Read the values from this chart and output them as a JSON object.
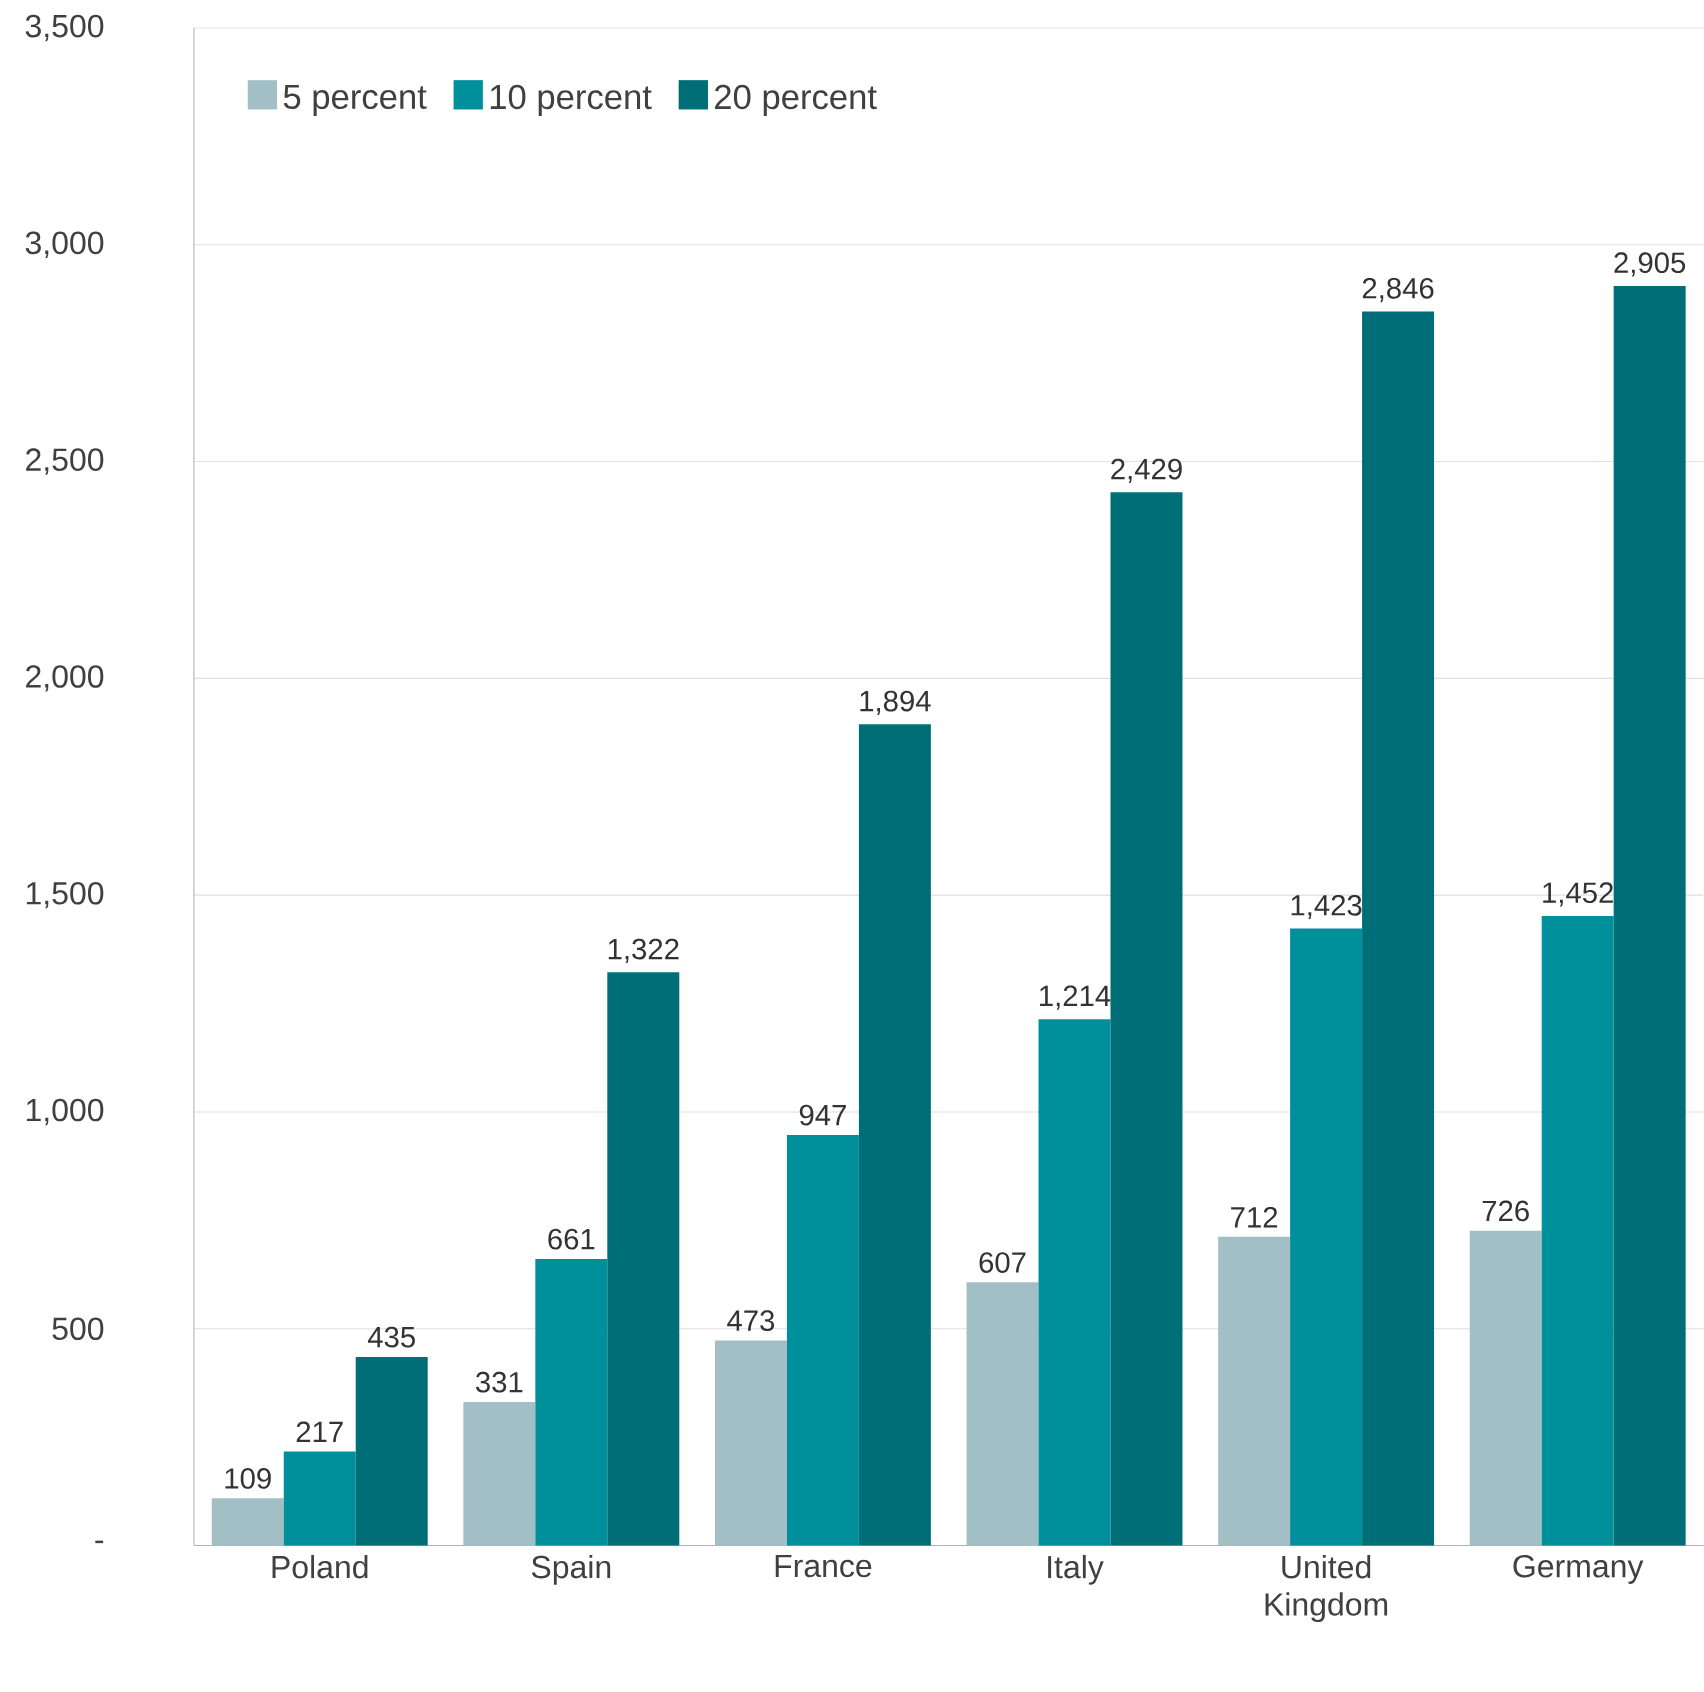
{
  "chart_data": {
    "type": "bar",
    "categories": [
      "Poland",
      "Spain",
      "France",
      "Italy",
      "United Kingdom",
      "Germany"
    ],
    "series": [
      {
        "name": "5 percent",
        "color": "#a3bfc6",
        "values": [
          109,
          331,
          473,
          607,
          712,
          726
        ],
        "value_labels": [
          "109",
          "331",
          "473",
          "607",
          "712",
          "726"
        ]
      },
      {
        "name": "10 percent",
        "color": "#00909b",
        "values": [
          217,
          661,
          947,
          1214,
          1423,
          1452
        ],
        "value_labels": [
          "217",
          "661",
          "947",
          "1,214",
          "1,423",
          "1,452"
        ]
      },
      {
        "name": "20 percent",
        "color": "#006e76",
        "values": [
          435,
          1322,
          1894,
          2429,
          2846,
          2905
        ],
        "value_labels": [
          "435",
          "1,322",
          "1,894",
          "2,429",
          "2,846",
          "2,905"
        ]
      }
    ],
    "ylim": [
      0,
      3500
    ],
    "yticks": [
      {
        "value": 0,
        "label": "-"
      },
      500,
      {
        "value": 1000,
        "label": "1,000"
      },
      {
        "value": 1500,
        "label": "1,500"
      },
      {
        "value": 2000,
        "label": "2,000"
      },
      {
        "value": 2500,
        "label": "2,500"
      },
      {
        "value": 3000,
        "label": "3,000"
      },
      {
        "value": 3500,
        "label": "3,500"
      }
    ],
    "grid": "y",
    "legend": "top left"
  }
}
